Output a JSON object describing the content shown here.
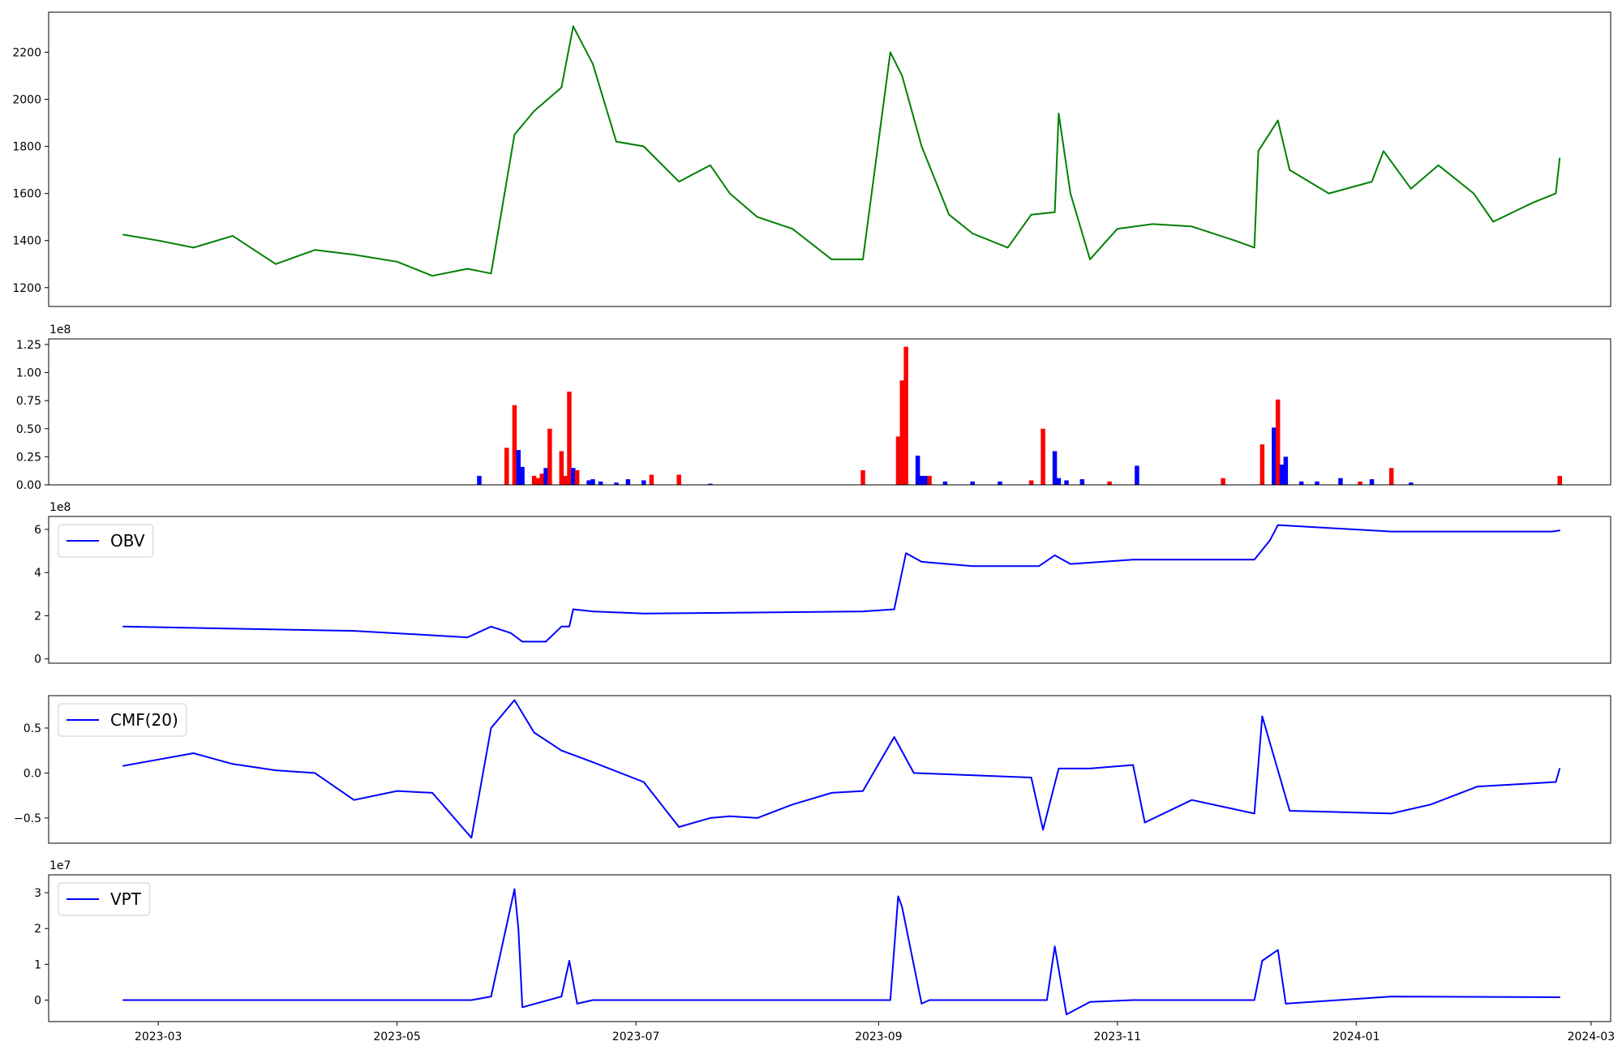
{
  "chart_data": [
    {
      "type": "line",
      "name": "price",
      "color": "#008000",
      "ylim": [
        1120,
        2370
      ],
      "yticks": [
        1200,
        1400,
        1600,
        1800,
        2000,
        2200
      ],
      "ytick_labels": [
        "1200",
        "1400",
        "1600",
        "1800",
        "2000",
        "2200"
      ],
      "x": [
        "2023-02-20",
        "2023-03-01",
        "2023-03-10",
        "2023-03-20",
        "2023-03-31",
        "2023-04-10",
        "2023-04-20",
        "2023-05-01",
        "2023-05-10",
        "2023-05-19",
        "2023-05-25",
        "2023-05-31",
        "2023-06-05",
        "2023-06-12",
        "2023-06-15",
        "2023-06-20",
        "2023-06-26",
        "2023-07-03",
        "2023-07-12",
        "2023-07-20",
        "2023-07-25",
        "2023-08-01",
        "2023-08-10",
        "2023-08-20",
        "2023-08-28",
        "2023-09-04",
        "2023-09-07",
        "2023-09-12",
        "2023-09-19",
        "2023-09-25",
        "2023-10-04",
        "2023-10-10",
        "2023-10-16",
        "2023-10-17",
        "2023-10-20",
        "2023-10-25",
        "2023-11-01",
        "2023-11-10",
        "2023-11-20",
        "2023-12-01",
        "2023-12-06",
        "2023-12-07",
        "2023-12-12",
        "2023-12-15",
        "2023-12-25",
        "2024-01-05",
        "2024-01-08",
        "2024-01-15",
        "2024-01-22",
        "2024-01-31",
        "2024-02-05",
        "2024-02-15",
        "2024-02-21",
        "2024-02-22"
      ],
      "y": [
        1425,
        1400,
        1370,
        1420,
        1300,
        1360,
        1340,
        1310,
        1250,
        1280,
        1260,
        1850,
        1950,
        2050,
        2310,
        2150,
        1820,
        1800,
        1650,
        1720,
        1600,
        1500,
        1450,
        1320,
        1320,
        2200,
        2100,
        1800,
        1510,
        1430,
        1370,
        1510,
        1520,
        1940,
        1600,
        1320,
        1450,
        1470,
        1460,
        1400,
        1370,
        1780,
        1910,
        1700,
        1600,
        1650,
        1780,
        1620,
        1720,
        1600,
        1480,
        1560,
        1600,
        1750
      ]
    },
    {
      "type": "bar",
      "name": "volume",
      "exponent_label": "1e8",
      "ylim": [
        0,
        1.3
      ],
      "yticks": [
        0,
        0.25,
        0.5,
        0.75,
        1.0,
        1.25
      ],
      "ytick_labels": [
        "0.00",
        "0.25",
        "0.50",
        "0.75",
        "1.00",
        "1.25"
      ],
      "up_color": "#ff0000",
      "down_color": "#0000ff",
      "bars": [
        {
          "x": "2023-05-22",
          "v": 0.08,
          "c": "down"
        },
        {
          "x": "2023-05-29",
          "v": 0.33,
          "c": "up"
        },
        {
          "x": "2023-05-31",
          "v": 0.71,
          "c": "up"
        },
        {
          "x": "2023-06-01",
          "v": 0.31,
          "c": "down"
        },
        {
          "x": "2023-06-02",
          "v": 0.16,
          "c": "down"
        },
        {
          "x": "2023-06-05",
          "v": 0.08,
          "c": "up"
        },
        {
          "x": "2023-06-06",
          "v": 0.06,
          "c": "up"
        },
        {
          "x": "2023-06-07",
          "v": 0.1,
          "c": "up"
        },
        {
          "x": "2023-06-08",
          "v": 0.15,
          "c": "down"
        },
        {
          "x": "2023-06-09",
          "v": 0.5,
          "c": "up"
        },
        {
          "x": "2023-06-12",
          "v": 0.3,
          "c": "up"
        },
        {
          "x": "2023-06-13",
          "v": 0.08,
          "c": "up"
        },
        {
          "x": "2023-06-14",
          "v": 0.83,
          "c": "up"
        },
        {
          "x": "2023-06-15",
          "v": 0.15,
          "c": "down"
        },
        {
          "x": "2023-06-16",
          "v": 0.13,
          "c": "up"
        },
        {
          "x": "2023-06-19",
          "v": 0.04,
          "c": "down"
        },
        {
          "x": "2023-06-20",
          "v": 0.05,
          "c": "down"
        },
        {
          "x": "2023-06-22",
          "v": 0.03,
          "c": "down"
        },
        {
          "x": "2023-06-26",
          "v": 0.02,
          "c": "down"
        },
        {
          "x": "2023-06-29",
          "v": 0.05,
          "c": "down"
        },
        {
          "x": "2023-07-03",
          "v": 0.04,
          "c": "down"
        },
        {
          "x": "2023-07-05",
          "v": 0.09,
          "c": "up"
        },
        {
          "x": "2023-07-12",
          "v": 0.09,
          "c": "up"
        },
        {
          "x": "2023-07-20",
          "v": 0.01,
          "c": "down"
        },
        {
          "x": "2023-08-28",
          "v": 0.13,
          "c": "up"
        },
        {
          "x": "2023-09-06",
          "v": 0.43,
          "c": "up"
        },
        {
          "x": "2023-09-07",
          "v": 0.93,
          "c": "up"
        },
        {
          "x": "2023-09-08",
          "v": 1.23,
          "c": "up"
        },
        {
          "x": "2023-09-11",
          "v": 0.26,
          "c": "down"
        },
        {
          "x": "2023-09-12",
          "v": 0.08,
          "c": "down"
        },
        {
          "x": "2023-09-13",
          "v": 0.08,
          "c": "down"
        },
        {
          "x": "2023-09-14",
          "v": 0.08,
          "c": "up"
        },
        {
          "x": "2023-09-18",
          "v": 0.03,
          "c": "down"
        },
        {
          "x": "2023-09-25",
          "v": 0.03,
          "c": "down"
        },
        {
          "x": "2023-10-02",
          "v": 0.03,
          "c": "down"
        },
        {
          "x": "2023-10-10",
          "v": 0.04,
          "c": "up"
        },
        {
          "x": "2023-10-13",
          "v": 0.5,
          "c": "up"
        },
        {
          "x": "2023-10-16",
          "v": 0.3,
          "c": "down"
        },
        {
          "x": "2023-10-17",
          "v": 0.06,
          "c": "down"
        },
        {
          "x": "2023-10-19",
          "v": 0.04,
          "c": "down"
        },
        {
          "x": "2023-10-23",
          "v": 0.05,
          "c": "down"
        },
        {
          "x": "2023-10-30",
          "v": 0.03,
          "c": "up"
        },
        {
          "x": "2023-11-06",
          "v": 0.17,
          "c": "down"
        },
        {
          "x": "2023-11-28",
          "v": 0.06,
          "c": "up"
        },
        {
          "x": "2023-12-08",
          "v": 0.36,
          "c": "up"
        },
        {
          "x": "2023-12-11",
          "v": 0.51,
          "c": "down"
        },
        {
          "x": "2023-12-12",
          "v": 0.76,
          "c": "up"
        },
        {
          "x": "2023-12-13",
          "v": 0.18,
          "c": "down"
        },
        {
          "x": "2023-12-14",
          "v": 0.25,
          "c": "down"
        },
        {
          "x": "2023-12-18",
          "v": 0.03,
          "c": "down"
        },
        {
          "x": "2023-12-22",
          "v": 0.03,
          "c": "down"
        },
        {
          "x": "2023-12-28",
          "v": 0.06,
          "c": "down"
        },
        {
          "x": "2024-01-02",
          "v": 0.03,
          "c": "up"
        },
        {
          "x": "2024-01-05",
          "v": 0.05,
          "c": "down"
        },
        {
          "x": "2024-01-10",
          "v": 0.15,
          "c": "up"
        },
        {
          "x": "2024-01-15",
          "v": 0.02,
          "c": "down"
        },
        {
          "x": "2024-02-22",
          "v": 0.08,
          "c": "up"
        }
      ]
    },
    {
      "type": "line",
      "name": "obv",
      "color": "#0000ff",
      "legend": "OBV",
      "exponent_label": "1e8",
      "ylim": [
        -0.2,
        6.6
      ],
      "yticks": [
        0,
        2,
        4,
        6
      ],
      "ytick_labels": [
        "0",
        "2",
        "4",
        "6"
      ],
      "x": [
        "2023-02-20",
        "2023-03-20",
        "2023-04-20",
        "2023-05-19",
        "2023-05-25",
        "2023-05-30",
        "2023-06-02",
        "2023-06-08",
        "2023-06-12",
        "2023-06-14",
        "2023-06-15",
        "2023-06-20",
        "2023-07-03",
        "2023-08-28",
        "2023-09-05",
        "2023-09-08",
        "2023-09-12",
        "2023-09-25",
        "2023-10-12",
        "2023-10-16",
        "2023-10-20",
        "2023-11-05",
        "2023-12-06",
        "2023-12-10",
        "2023-12-12",
        "2024-01-10",
        "2024-02-20",
        "2024-02-22"
      ],
      "y": [
        1.5,
        1.4,
        1.3,
        1.0,
        1.5,
        1.2,
        0.8,
        0.8,
        1.5,
        1.5,
        2.3,
        2.2,
        2.1,
        2.2,
        2.3,
        4.9,
        4.5,
        4.3,
        4.3,
        4.8,
        4.4,
        4.6,
        4.6,
        5.5,
        6.2,
        5.9,
        5.9,
        5.95
      ]
    },
    {
      "type": "line",
      "name": "cmf",
      "color": "#0000ff",
      "legend": "CMF(20)",
      "ylim": [
        -0.78,
        0.86
      ],
      "yticks": [
        -0.5,
        0.0,
        0.5
      ],
      "ytick_labels": [
        "−0.5",
        "0.0",
        "0.5"
      ],
      "x": [
        "2023-02-20",
        "2023-03-01",
        "2023-03-10",
        "2023-03-20",
        "2023-03-31",
        "2023-04-10",
        "2023-04-20",
        "2023-05-01",
        "2023-05-10",
        "2023-05-20",
        "2023-05-25",
        "2023-05-31",
        "2023-06-05",
        "2023-06-12",
        "2023-06-20",
        "2023-07-03",
        "2023-07-12",
        "2023-07-20",
        "2023-07-25",
        "2023-08-01",
        "2023-08-10",
        "2023-08-20",
        "2023-08-28",
        "2023-09-05",
        "2023-09-10",
        "2023-10-10",
        "2023-10-13",
        "2023-10-17",
        "2023-10-25",
        "2023-11-05",
        "2023-11-08",
        "2023-11-20",
        "2023-12-06",
        "2023-12-08",
        "2023-12-15",
        "2024-01-10",
        "2024-01-20",
        "2024-02-01",
        "2024-02-21",
        "2024-02-22"
      ],
      "y": [
        0.08,
        0.15,
        0.22,
        0.1,
        0.03,
        0.0,
        -0.3,
        -0.2,
        -0.22,
        -0.72,
        0.5,
        0.81,
        0.45,
        0.25,
        0.12,
        -0.1,
        -0.6,
        -0.5,
        -0.48,
        -0.5,
        -0.35,
        -0.22,
        -0.2,
        0.4,
        0.0,
        -0.05,
        -0.63,
        0.05,
        0.05,
        0.09,
        -0.55,
        -0.3,
        -0.45,
        0.63,
        -0.42,
        -0.45,
        -0.35,
        -0.15,
        -0.1,
        0.05
      ]
    },
    {
      "type": "line",
      "name": "vpt",
      "color": "#0000ff",
      "legend": "VPT",
      "exponent_label": "1e7",
      "ylim": [
        -0.6,
        3.5
      ],
      "yticks": [
        0,
        1,
        2,
        3
      ],
      "ytick_labels": [
        "0",
        "1",
        "2",
        "3"
      ],
      "x": [
        "2023-02-20",
        "2023-05-20",
        "2023-05-25",
        "2023-05-31",
        "2023-06-01",
        "2023-06-02",
        "2023-06-12",
        "2023-06-14",
        "2023-06-16",
        "2023-06-20",
        "2023-09-04",
        "2023-09-06",
        "2023-09-07",
        "2023-09-12",
        "2023-09-14",
        "2023-10-14",
        "2023-10-16",
        "2023-10-19",
        "2023-10-25",
        "2023-11-05",
        "2023-12-06",
        "2023-12-08",
        "2023-12-12",
        "2023-12-14",
        "2024-01-10",
        "2024-02-22"
      ],
      "y": [
        0,
        0,
        0.1,
        3.1,
        2.0,
        -0.2,
        0.1,
        1.1,
        -0.1,
        0,
        0,
        2.9,
        2.6,
        -0.1,
        0,
        0,
        1.5,
        -0.4,
        -0.05,
        0,
        0,
        1.1,
        1.4,
        -0.1,
        0.1,
        0.08
      ]
    }
  ],
  "x_axis": {
    "domain_start": "2023-02-01",
    "domain_end": "2024-03-06",
    "ticks": [
      "2023-03-01",
      "2023-05-01",
      "2023-07-01",
      "2023-09-01",
      "2023-11-01",
      "2024-01-01",
      "2024-03-01"
    ],
    "tick_labels": [
      "2023-03",
      "2023-05",
      "2023-07",
      "2023-09",
      "2023-11",
      "2024-01",
      "2024-03"
    ]
  }
}
